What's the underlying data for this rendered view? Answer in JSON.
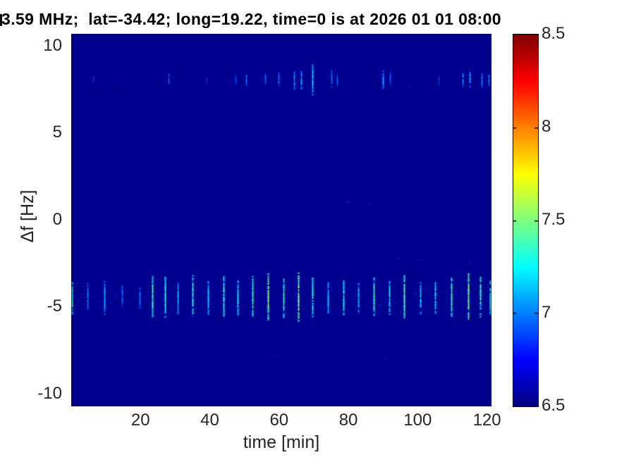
{
  "chart_data": {
    "type": "heatmap",
    "title": "3.59 MHz;  lat=-34.42; long=19.22, time=0 is at 2026 01 01 08:00",
    "title_note": "title is clipped at the left edge of the figure; a partial character sliver is visible before '3.59'",
    "xlabel": "time [min]",
    "ylabel": "Δf [Hz]",
    "xlim": [
      0,
      121.3
    ],
    "ylim": [
      -10.74,
      10.67
    ],
    "x_ticks": [
      20,
      40,
      60,
      80,
      100,
      120
    ],
    "y_ticks": [
      10,
      5,
      0,
      -5,
      -10
    ],
    "grid": false,
    "colorbar": {
      "min": 6.5,
      "max": 8.5,
      "ticks": [
        8.5,
        8,
        7.5,
        7,
        6.5
      ],
      "colormap": "jet",
      "position": "right"
    },
    "background_value": 6.53,
    "tick_color": "#262626",
    "title_color": "#000000",
    "background_navy": "#00008f",
    "streak_columns": [
      "t_min",
      "f_hz",
      "height_hz",
      "value"
    ],
    "bands": [
      {
        "name": "main-band",
        "f_center": -4.55,
        "description": "bright quasi-periodic vertical streaks every ~4.4 min",
        "speckles": [
          {
            "count": 260,
            "spread_hz": 0.55,
            "vmin": 6.65,
            "vmax": 6.95
          },
          {
            "count": 130,
            "spread_hz": 1.3,
            "vmin": 6.6,
            "vmax": 6.78
          }
        ],
        "streaks": [
          [
            0.3,
            -4.5,
            1.8,
            7.25
          ],
          [
            4.7,
            -4.4,
            1.5,
            7.0
          ],
          [
            9.5,
            -4.5,
            1.9,
            7.05
          ],
          [
            14.6,
            -4.4,
            1.2,
            6.95
          ],
          [
            19.7,
            -4.5,
            1.2,
            6.92
          ],
          [
            23.5,
            -4.4,
            2.4,
            7.3
          ],
          [
            27.0,
            -4.45,
            2.3,
            7.25
          ],
          [
            30.8,
            -4.5,
            1.8,
            7.1
          ],
          [
            35.0,
            -4.4,
            2.4,
            7.3
          ],
          [
            39.5,
            -4.5,
            1.9,
            7.15
          ],
          [
            44.0,
            -4.45,
            2.4,
            7.3
          ],
          [
            48.0,
            -4.5,
            2.0,
            7.22
          ],
          [
            52.3,
            -4.4,
            2.3,
            7.3
          ],
          [
            56.7,
            -4.45,
            2.7,
            7.45
          ],
          [
            61.2,
            -4.5,
            2.2,
            7.3
          ],
          [
            65.5,
            -4.45,
            2.8,
            7.5
          ],
          [
            69.6,
            -4.5,
            2.3,
            7.3
          ],
          [
            74.0,
            -4.45,
            1.8,
            7.15
          ],
          [
            78.5,
            -4.5,
            2.0,
            7.25
          ],
          [
            82.8,
            -4.5,
            1.7,
            7.1
          ],
          [
            87.3,
            -4.45,
            2.2,
            7.3
          ],
          [
            91.7,
            -4.5,
            1.9,
            7.2
          ],
          [
            96.0,
            -4.45,
            2.5,
            7.4
          ],
          [
            100.8,
            -4.5,
            1.8,
            7.15
          ],
          [
            105.0,
            -4.5,
            1.9,
            7.2
          ],
          [
            109.8,
            -4.45,
            2.2,
            7.3
          ],
          [
            114.6,
            -4.4,
            2.6,
            7.45
          ],
          [
            118.0,
            -4.45,
            2.3,
            7.35
          ],
          [
            120.8,
            -4.5,
            2.0,
            7.3
          ]
        ]
      },
      {
        "name": "upper-band",
        "f_center": 8.05,
        "description": "faint sparse streaks near +8 Hz",
        "speckles": [
          {
            "count": 80,
            "spread_hz": 0.45,
            "vmin": 6.6,
            "vmax": 6.8
          }
        ],
        "streaks": [
          [
            6.3,
            8.05,
            0.4,
            6.8
          ],
          [
            28.0,
            8.1,
            0.6,
            6.9
          ],
          [
            39.0,
            8.0,
            0.4,
            6.8
          ],
          [
            47.5,
            8.05,
            0.5,
            6.85
          ],
          [
            50.5,
            8.05,
            0.7,
            6.92
          ],
          [
            56.0,
            8.1,
            0.6,
            6.9
          ],
          [
            59.8,
            8.05,
            0.8,
            6.95
          ],
          [
            64.3,
            8.0,
            1.0,
            7.0
          ],
          [
            66.3,
            8.05,
            1.1,
            7.05
          ],
          [
            69.6,
            8.05,
            1.7,
            7.15
          ],
          [
            75.0,
            8.1,
            0.9,
            6.95
          ],
          [
            76.7,
            8.0,
            0.6,
            6.88
          ],
          [
            90.0,
            8.05,
            1.0,
            7.05
          ],
          [
            92.0,
            8.1,
            0.7,
            6.9
          ],
          [
            106.0,
            8.0,
            0.5,
            6.85
          ],
          [
            113.0,
            8.05,
            0.9,
            7.0
          ],
          [
            115.0,
            8.1,
            0.9,
            7.05
          ],
          [
            118.5,
            8.0,
            0.8,
            6.95
          ],
          [
            120.5,
            8.05,
            0.7,
            7.0
          ]
        ]
      }
    ],
    "specks": [
      [
        79.6,
        1.05,
        6.9
      ],
      [
        86.0,
        0.97,
        6.85
      ],
      [
        94.0,
        -2.2,
        6.85
      ],
      [
        100.2,
        -2.3,
        6.8
      ],
      [
        114.8,
        -2.5,
        6.85
      ],
      [
        58.0,
        -7.8,
        6.78
      ],
      [
        90.0,
        -7.9,
        6.8
      ]
    ]
  }
}
